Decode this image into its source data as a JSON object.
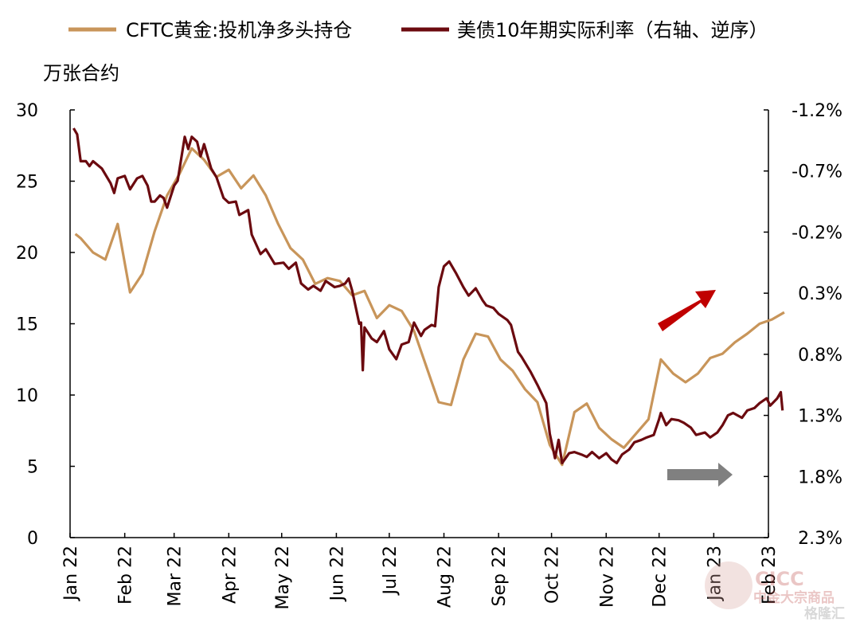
{
  "chart_data": {
    "type": "line",
    "legend": {
      "placement": "top",
      "entries": [
        {
          "label": "CFTC黄金:投机净多头持仓",
          "color": "#C8955A"
        },
        {
          "label": "美债10年期实际利率（右轴、逆序）",
          "color": "#6B0A0F"
        }
      ]
    },
    "left_axis": {
      "unit_label": "万张合约",
      "min": 0,
      "max": 30,
      "ticks": [
        "0",
        "5",
        "10",
        "15",
        "20",
        "25",
        "30"
      ]
    },
    "right_axis": {
      "inverted": true,
      "min": -1.2,
      "max": 2.3,
      "tick_values": [
        -1.2,
        -0.7,
        -0.2,
        0.3,
        0.8,
        1.3,
        1.8,
        2.3
      ],
      "ticks": [
        "-1.2%",
        "-0.7%",
        "-0.2%",
        "0.3%",
        "0.8%",
        "1.3%",
        "1.8%",
        "2.3%"
      ]
    },
    "x_axis": {
      "start": "2022-01-01",
      "end": "2023-02-01",
      "ticks": [
        {
          "label": "Jan 22",
          "date": "2022-01-01"
        },
        {
          "label": "Feb 22",
          "date": "2022-02-01"
        },
        {
          "label": "Mar 22",
          "date": "2022-03-01"
        },
        {
          "label": "Apr 22",
          "date": "2022-04-01"
        },
        {
          "label": "May 22",
          "date": "2022-05-01"
        },
        {
          "label": "Jun 22",
          "date": "2022-06-01"
        },
        {
          "label": "Jul 22",
          "date": "2022-07-01"
        },
        {
          "label": "Aug 22",
          "date": "2022-08-01"
        },
        {
          "label": "Sep 22",
          "date": "2022-09-01"
        },
        {
          "label": "Oct 22",
          "date": "2022-10-01"
        },
        {
          "label": "Nov 22",
          "date": "2022-11-01"
        },
        {
          "label": "Dec 22",
          "date": "2022-12-01"
        },
        {
          "label": "Jan 23",
          "date": "2023-01-01"
        },
        {
          "label": "Feb 23",
          "date": "2023-02-01"
        }
      ]
    },
    "grid": false,
    "series": [
      {
        "name": "CFTC黄金:投机净多头持仓",
        "axis": "left",
        "color": "#C8955A",
        "points": [
          [
            "2022-01-04",
            21.3
          ],
          [
            "2022-01-07",
            21.0
          ],
          [
            "2022-01-14",
            20.0
          ],
          [
            "2022-01-21",
            19.5
          ],
          [
            "2022-01-28",
            22.0
          ],
          [
            "2022-02-04",
            17.2
          ],
          [
            "2022-02-11",
            18.5
          ],
          [
            "2022-02-18",
            21.5
          ],
          [
            "2022-02-25",
            24.0
          ],
          [
            "2022-03-04",
            25.5
          ],
          [
            "2022-03-11",
            27.3
          ],
          [
            "2022-03-18",
            26.5
          ],
          [
            "2022-03-25",
            25.3
          ],
          [
            "2022-04-01",
            25.8
          ],
          [
            "2022-04-08",
            24.5
          ],
          [
            "2022-04-15",
            25.4
          ],
          [
            "2022-04-22",
            24.0
          ],
          [
            "2022-04-29",
            22.0
          ],
          [
            "2022-05-06",
            20.3
          ],
          [
            "2022-05-13",
            19.5
          ],
          [
            "2022-05-20",
            17.8
          ],
          [
            "2022-05-27",
            18.2
          ],
          [
            "2022-06-03",
            18.0
          ],
          [
            "2022-06-10",
            17.0
          ],
          [
            "2022-06-17",
            17.3
          ],
          [
            "2022-06-24",
            15.4
          ],
          [
            "2022-07-01",
            16.3
          ],
          [
            "2022-07-08",
            15.9
          ],
          [
            "2022-07-15",
            14.5
          ],
          [
            "2022-07-22",
            12.0
          ],
          [
            "2022-07-29",
            9.5
          ],
          [
            "2022-08-05",
            9.3
          ],
          [
            "2022-08-12",
            12.5
          ],
          [
            "2022-08-19",
            14.3
          ],
          [
            "2022-08-26",
            14.1
          ],
          [
            "2022-09-02",
            12.5
          ],
          [
            "2022-09-09",
            11.7
          ],
          [
            "2022-09-16",
            10.4
          ],
          [
            "2022-09-23",
            9.5
          ],
          [
            "2022-09-30",
            6.5
          ],
          [
            "2022-10-07",
            5.1
          ],
          [
            "2022-10-14",
            8.8
          ],
          [
            "2022-10-21",
            9.4
          ],
          [
            "2022-10-28",
            7.7
          ],
          [
            "2022-11-04",
            6.9
          ],
          [
            "2022-11-11",
            6.3
          ],
          [
            "2022-11-18",
            7.3
          ],
          [
            "2022-11-25",
            8.3
          ],
          [
            "2022-12-02",
            12.5
          ],
          [
            "2022-12-09",
            11.5
          ],
          [
            "2022-12-16",
            10.9
          ],
          [
            "2022-12-23",
            11.5
          ],
          [
            "2022-12-30",
            12.6
          ],
          [
            "2023-01-06",
            12.9
          ],
          [
            "2023-01-13",
            13.7
          ],
          [
            "2023-01-20",
            14.3
          ],
          [
            "2023-01-27",
            15.0
          ],
          [
            "2023-02-03",
            15.3
          ],
          [
            "2023-02-10",
            15.8
          ]
        ]
      },
      {
        "name": "美债10年期实际利率（右轴、逆序）",
        "axis": "right",
        "color": "#6B0A0F",
        "points": [
          [
            "2022-01-03",
            -1.05
          ],
          [
            "2022-01-05",
            -1.0
          ],
          [
            "2022-01-07",
            -0.78
          ],
          [
            "2022-01-10",
            -0.78
          ],
          [
            "2022-01-12",
            -0.74
          ],
          [
            "2022-01-14",
            -0.78
          ],
          [
            "2022-01-19",
            -0.72
          ],
          [
            "2022-01-24",
            -0.6
          ],
          [
            "2022-01-26",
            -0.52
          ],
          [
            "2022-01-28",
            -0.64
          ],
          [
            "2022-02-01",
            -0.66
          ],
          [
            "2022-02-04",
            -0.55
          ],
          [
            "2022-02-08",
            -0.64
          ],
          [
            "2022-02-11",
            -0.66
          ],
          [
            "2022-02-14",
            -0.58
          ],
          [
            "2022-02-16",
            -0.45
          ],
          [
            "2022-02-18",
            -0.45
          ],
          [
            "2022-02-21",
            -0.5
          ],
          [
            "2022-02-23",
            -0.48
          ],
          [
            "2022-02-25",
            -0.4
          ],
          [
            "2022-03-01",
            -0.58
          ],
          [
            "2022-03-03",
            -0.62
          ],
          [
            "2022-03-07",
            -0.98
          ],
          [
            "2022-03-09",
            -0.88
          ],
          [
            "2022-03-11",
            -0.98
          ],
          [
            "2022-03-14",
            -0.94
          ],
          [
            "2022-03-16",
            -0.82
          ],
          [
            "2022-03-18",
            -0.92
          ],
          [
            "2022-03-22",
            -0.72
          ],
          [
            "2022-03-25",
            -0.65
          ],
          [
            "2022-03-29",
            -0.48
          ],
          [
            "2022-04-01",
            -0.44
          ],
          [
            "2022-04-05",
            -0.45
          ],
          [
            "2022-04-07",
            -0.34
          ],
          [
            "2022-04-12",
            -0.38
          ],
          [
            "2022-04-14",
            -0.18
          ],
          [
            "2022-04-19",
            -0.02
          ],
          [
            "2022-04-22",
            -0.06
          ],
          [
            "2022-04-27",
            0.06
          ],
          [
            "2022-05-02",
            0.05
          ],
          [
            "2022-05-05",
            0.1
          ],
          [
            "2022-05-09",
            0.05
          ],
          [
            "2022-05-12",
            0.22
          ],
          [
            "2022-05-16",
            0.27
          ],
          [
            "2022-05-19",
            0.24
          ],
          [
            "2022-05-23",
            0.28
          ],
          [
            "2022-05-26",
            0.2
          ],
          [
            "2022-05-31",
            0.25
          ],
          [
            "2022-06-03",
            0.24
          ],
          [
            "2022-06-06",
            0.22
          ],
          [
            "2022-06-08",
            0.18
          ],
          [
            "2022-06-10",
            0.28
          ],
          [
            "2022-06-14",
            0.55
          ],
          [
            "2022-06-15",
            0.54
          ],
          [
            "2022-06-16",
            0.93
          ],
          [
            "2022-06-17",
            0.58
          ],
          [
            "2022-06-21",
            0.67
          ],
          [
            "2022-06-24",
            0.7
          ],
          [
            "2022-06-28",
            0.61
          ],
          [
            "2022-07-01",
            0.76
          ],
          [
            "2022-07-05",
            0.84
          ],
          [
            "2022-07-08",
            0.72
          ],
          [
            "2022-07-12",
            0.7
          ],
          [
            "2022-07-15",
            0.54
          ],
          [
            "2022-07-19",
            0.65
          ],
          [
            "2022-07-21",
            0.6
          ],
          [
            "2022-07-25",
            0.56
          ],
          [
            "2022-07-27",
            0.57
          ],
          [
            "2022-07-29",
            0.25
          ],
          [
            "2022-08-01",
            0.08
          ],
          [
            "2022-08-04",
            0.04
          ],
          [
            "2022-08-08",
            0.14
          ],
          [
            "2022-08-12",
            0.25
          ],
          [
            "2022-08-15",
            0.32
          ],
          [
            "2022-08-19",
            0.26
          ],
          [
            "2022-08-23",
            0.36
          ],
          [
            "2022-08-25",
            0.4
          ],
          [
            "2022-08-29",
            0.42
          ],
          [
            "2022-09-01",
            0.47
          ],
          [
            "2022-09-06",
            0.52
          ],
          [
            "2022-09-08",
            0.56
          ],
          [
            "2022-09-12",
            0.78
          ],
          [
            "2022-09-14",
            0.82
          ],
          [
            "2022-09-19",
            0.94
          ],
          [
            "2022-09-23",
            1.05
          ],
          [
            "2022-09-28",
            1.2
          ],
          [
            "2022-09-30",
            1.45
          ],
          [
            "2022-10-03",
            1.65
          ],
          [
            "2022-10-05",
            1.5
          ],
          [
            "2022-10-07",
            1.69
          ],
          [
            "2022-10-11",
            1.61
          ],
          [
            "2022-10-14",
            1.6
          ],
          [
            "2022-10-18",
            1.62
          ],
          [
            "2022-10-21",
            1.64
          ],
          [
            "2022-10-24",
            1.6
          ],
          [
            "2022-10-28",
            1.65
          ],
          [
            "2022-11-01",
            1.61
          ],
          [
            "2022-11-04",
            1.66
          ],
          [
            "2022-11-07",
            1.69
          ],
          [
            "2022-11-10",
            1.62
          ],
          [
            "2022-11-14",
            1.58
          ],
          [
            "2022-11-17",
            1.52
          ],
          [
            "2022-11-21",
            1.5
          ],
          [
            "2022-11-24",
            1.48
          ],
          [
            "2022-11-28",
            1.46
          ],
          [
            "2022-12-01",
            1.33
          ],
          [
            "2022-12-02",
            1.28
          ],
          [
            "2022-12-05",
            1.38
          ],
          [
            "2022-12-08",
            1.33
          ],
          [
            "2022-12-12",
            1.34
          ],
          [
            "2022-12-15",
            1.36
          ],
          [
            "2022-12-19",
            1.4
          ],
          [
            "2022-12-22",
            1.46
          ],
          [
            "2022-12-27",
            1.44
          ],
          [
            "2022-12-30",
            1.48
          ],
          [
            "2023-01-03",
            1.44
          ],
          [
            "2023-01-06",
            1.38
          ],
          [
            "2023-01-09",
            1.3
          ],
          [
            "2023-01-12",
            1.28
          ],
          [
            "2023-01-17",
            1.32
          ],
          [
            "2023-01-20",
            1.26
          ],
          [
            "2023-01-24",
            1.24
          ],
          [
            "2023-01-27",
            1.2
          ],
          [
            "2023-01-31",
            1.16
          ],
          [
            "2023-02-02",
            1.22
          ],
          [
            "2023-02-06",
            1.16
          ],
          [
            "2023-02-08",
            1.11
          ],
          [
            "2023-02-09",
            1.26
          ]
        ]
      }
    ],
    "annotations": [
      {
        "kind": "arrow",
        "color": "#C00000",
        "meaning": "up-right trend arrow near gold series"
      },
      {
        "kind": "arrow",
        "color": "#808080",
        "meaning": "right-pointing arrow near real-rate series"
      }
    ]
  },
  "watermark": {
    "brand": "CICC",
    "subtitle": "中金大宗商品",
    "corner": "格隆汇"
  }
}
